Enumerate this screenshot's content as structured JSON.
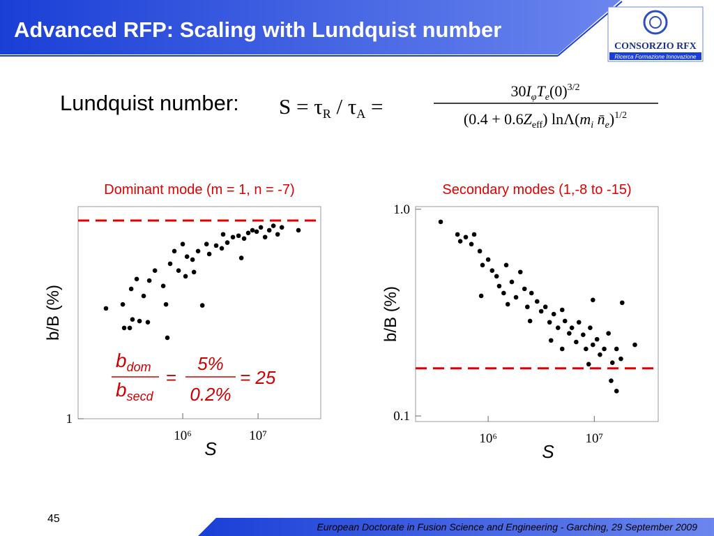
{
  "header": {
    "title": "Advanced RFP: Scaling with Lundquist number",
    "logo_name": "CONSORZIO RFX",
    "logo_tagline": "Ricerca Formazione Innovazione"
  },
  "formula": {
    "label": "Lundquist number:",
    "lhs": [
      "S = τ",
      "R",
      " / τ",
      "A",
      " ="
    ],
    "numerator": [
      "30",
      "I",
      "φ",
      "T",
      "e",
      "(0)",
      "3/2"
    ],
    "denominator": [
      "(0.4  +  0.6",
      "Z",
      "eff",
      ") lnΛ(",
      "m",
      "i",
      " n̄",
      "e",
      ")",
      "1/2"
    ]
  },
  "ratio": {
    "num_b": "b",
    "num_sub": "dom",
    "den_b": "b",
    "den_sub": "secd",
    "eq1": "=",
    "num_value": "5%",
    "den_value": "0.2%",
    "result": "= 25"
  },
  "footer": {
    "page": "45",
    "text": "European Doctorate in Fusion Science and Engineering  -  Garching, 29 September 2009"
  },
  "chart_data": [
    {
      "type": "scatter",
      "title": "Dominant mode (m = 1, n = -7)",
      "xlabel": "S",
      "ylabel": "b/B (%)",
      "color": "#000000",
      "log_x": true,
      "log_y": true,
      "xlim": [
        40800,
        68000000
      ],
      "ylim": [
        1,
        5.6
      ],
      "xticks": [
        {
          "value": 1000000,
          "label": "10⁶"
        },
        {
          "value": 10000000,
          "label": "10⁷"
        }
      ],
      "yticks": [
        1
      ],
      "reference_line": {
        "value": 5,
        "color": "#e00000"
      },
      "x": [
        95700,
        160000,
        167000,
        198000,
        215000,
        267000,
        344000,
        625000,
        207000,
        245000,
        303000,
        360000,
        427000,
        551000,
        600000,
        681000,
        774000,
        880000,
        1000000,
        1140000,
        1350000,
        1600000,
        1820000,
        2070000,
        2250000,
        2780000,
        3300000,
        3910000,
        4640000,
        5510000,
        6530000,
        7410000,
        8430000,
        9580000,
        10900000,
        12400000,
        14100000,
        16000000,
        18200000,
        20700000,
        34400000,
        1090000,
        1410000,
        3440000,
        6000000
      ],
      "values": [
        2.45,
        2.53,
        2.09,
        2.09,
        2.24,
        2.21,
        2.19,
        1.93,
        2.87,
        3.11,
        2.71,
        3.07,
        3.33,
        2.94,
        2.53,
        3.52,
        3.9,
        3.33,
        4.13,
        3.73,
        3.64,
        3.9,
        2.51,
        4.13,
        3.81,
        4.08,
        3.99,
        4.18,
        4.37,
        4.42,
        4.32,
        4.52,
        4.62,
        4.57,
        4.73,
        4.37,
        4.62,
        4.79,
        4.47,
        4.73,
        4.62,
        3.18,
        3.29,
        4.47,
        3.69
      ]
    },
    {
      "type": "scatter",
      "title": "Secondary modes (1,-8 to -15)",
      "xlabel": "S",
      "ylabel": "b/B (%)",
      "color": "#000000",
      "log_x": true,
      "log_y": true,
      "xlim": [
        207000,
        40000000
      ],
      "ylim": [
        0.094,
        1.03
      ],
      "xticks": [
        {
          "value": 1000000,
          "label": "10⁶"
        },
        {
          "value": 10000000,
          "label": "10⁷"
        }
      ],
      "yticks": [
        {
          "value": 1,
          "label": "1.0"
        },
        0.1
      ],
      "reference_line": {
        "value": 0.17,
        "color": "#e00000"
      },
      "x": [
        357000,
        514000,
        546000,
        615000,
        695000,
        738000,
        834000,
        885000,
        1000000,
        1090000,
        1200000,
        860000,
        1270000,
        1400000,
        1480000,
        1670000,
        1830000,
        2010000,
        2200000,
        2340000,
        2560000,
        2890000,
        3160000,
        3460000,
        3790000,
        4150000,
        4550000,
        4980000,
        5290000,
        5800000,
        6150000,
        6750000,
        7160000,
        7850000,
        8340000,
        9140000,
        9700000,
        10600000,
        11300000,
        12400000,
        13600000,
        14800000,
        16200000,
        17800000,
        18300000,
        24100000,
        14400000,
        16200000,
        9700000,
        3910000,
        8850000,
        4980000,
        2480000,
        1530000
      ],
      "values": [
        0.869,
        0.755,
        0.7,
        0.733,
        0.678,
        0.755,
        0.627,
        0.537,
        0.571,
        0.505,
        0.474,
        0.381,
        0.425,
        0.393,
        0.537,
        0.445,
        0.375,
        0.497,
        0.412,
        0.337,
        0.393,
        0.358,
        0.321,
        0.337,
        0.284,
        0.311,
        0.267,
        0.326,
        0.288,
        0.251,
        0.267,
        0.228,
        0.284,
        0.247,
        0.211,
        0.267,
        0.221,
        0.235,
        0.198,
        0.211,
        0.251,
        0.181,
        0.211,
        0.189,
        0.353,
        0.221,
        0.148,
        0.132,
        0.364,
        0.232,
        0.178,
        0.211,
        0.288,
        0.347
      ]
    }
  ]
}
